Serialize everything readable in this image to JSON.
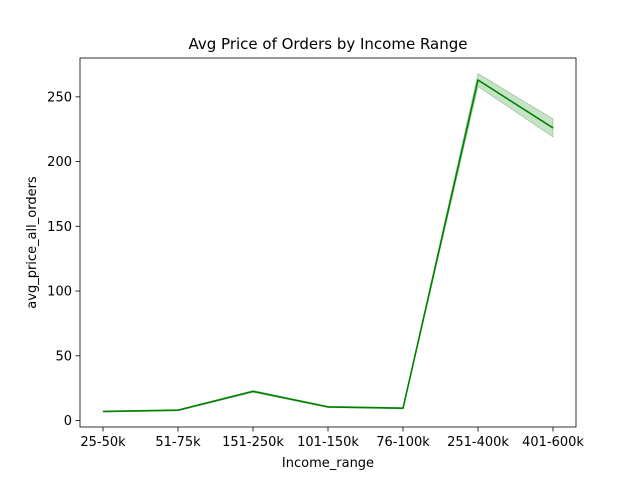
{
  "chart_data": {
    "type": "line",
    "title": "Avg Price of Orders by Income Range",
    "xlabel": "Income_range",
    "ylabel": "avg_price_all_orders",
    "categories": [
      "25-50k",
      "51-75k",
      "151-250k",
      "101-150k",
      "76-100k",
      "251-400k",
      "401-600k"
    ],
    "series": [
      {
        "values": [
          7,
          8,
          22.5,
          10.5,
          9.5,
          263,
          226
        ],
        "ci_low": [
          6.6,
          7.6,
          21.8,
          10.0,
          9.0,
          258,
          219
        ],
        "ci_high": [
          7.4,
          8.4,
          23.2,
          11.0,
          10.0,
          268,
          233
        ]
      }
    ],
    "ylim": [
      -5,
      280
    ],
    "yticks": [
      0,
      50,
      100,
      150,
      200,
      250
    ],
    "grid": false,
    "line_color": "#008000",
    "band_color": "#008000"
  }
}
